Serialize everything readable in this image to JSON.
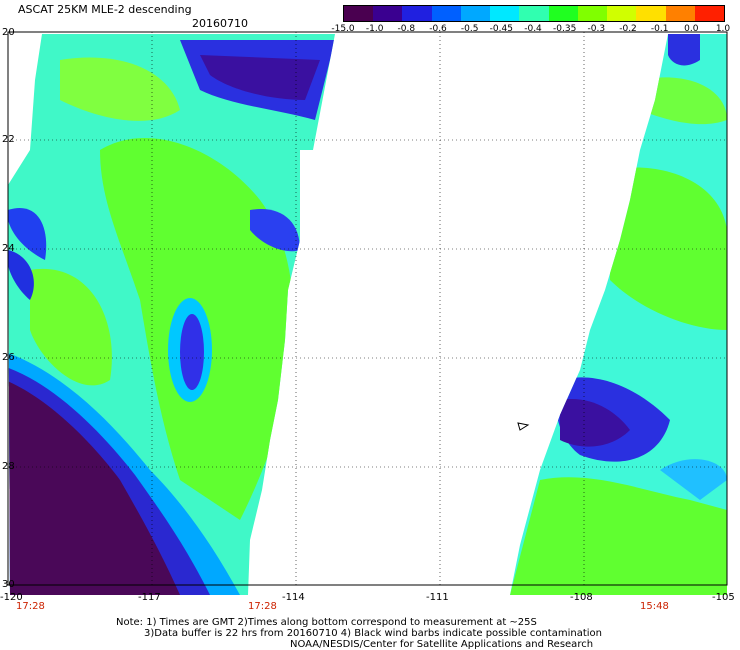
{
  "header": {
    "title": "ASCAT 25KM MLE-2 descending",
    "date": "20160710"
  },
  "colorbar": {
    "labels": [
      "-15.0",
      "-1.0",
      "-0.8",
      "-0.6",
      "-0.5",
      "-0.45",
      "-0.4",
      "-0.35",
      "-0.3",
      "-0.2",
      "-0.1",
      "0.0",
      "1.0"
    ],
    "colors": [
      "#4a0050",
      "#3a0090",
      "#2020e0",
      "#0060ff",
      "#00a8ff",
      "#00e8ff",
      "#30ffb0",
      "#20ff20",
      "#80ff00",
      "#d0ff00",
      "#ffe000",
      "#ff8000",
      "#ff2000"
    ]
  },
  "axes": {
    "x_ticks": [
      "-120",
      "-117",
      "-114",
      "-111",
      "-108",
      "-105"
    ],
    "y_ticks": [
      "20",
      "22",
      "24",
      "26",
      "28",
      "30"
    ]
  },
  "times": {
    "left": "17:28",
    "middle": "17:28",
    "right": "15:48"
  },
  "notes": {
    "line1": "Note: 1) Times are GMT 2)Times along bottom correspond to measurement at ~25S",
    "line2": "3)Data buffer is 22 hrs from 20160710 4) Black wind barbs indicate possible contamination",
    "line3": "NOAA/NESDIS/Center for Satellite Applications and Research"
  }
}
